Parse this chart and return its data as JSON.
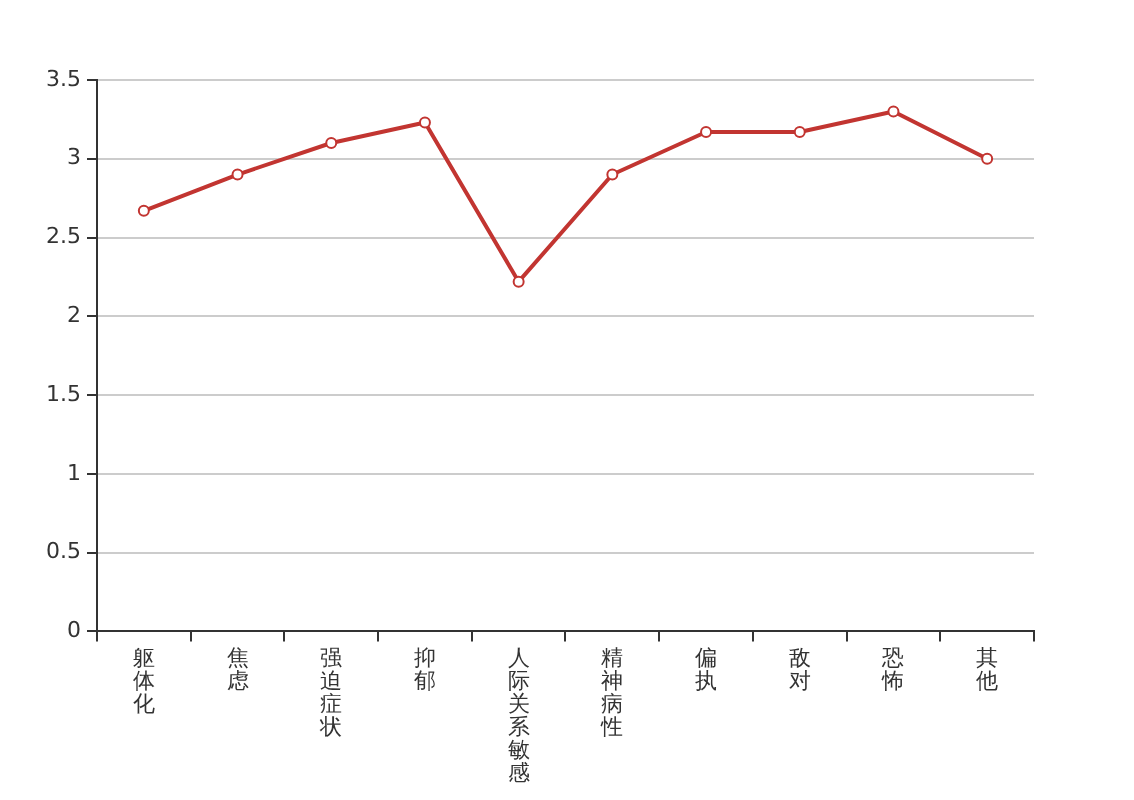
{
  "chart_data": {
    "type": "line",
    "categories": [
      "躯体化",
      "焦虑",
      "强迫症状",
      "抑郁",
      "人际关系敏感",
      "精神病性",
      "偏执",
      "敌对",
      "恐怖",
      "其他"
    ],
    "series": [
      {
        "color": "#c23531",
        "values": [
          2.67,
          2.9,
          3.1,
          3.23,
          2.22,
          2.9,
          3.17,
          3.17,
          3.3,
          3.0
        ]
      }
    ],
    "ylim": [
      0,
      3.5
    ],
    "yticks": [
      0,
      0.5,
      1,
      1.5,
      2,
      2.5,
      3,
      3.5
    ],
    "grid": "y",
    "legend": false,
    "marker": "circle",
    "line_style": "solid"
  }
}
